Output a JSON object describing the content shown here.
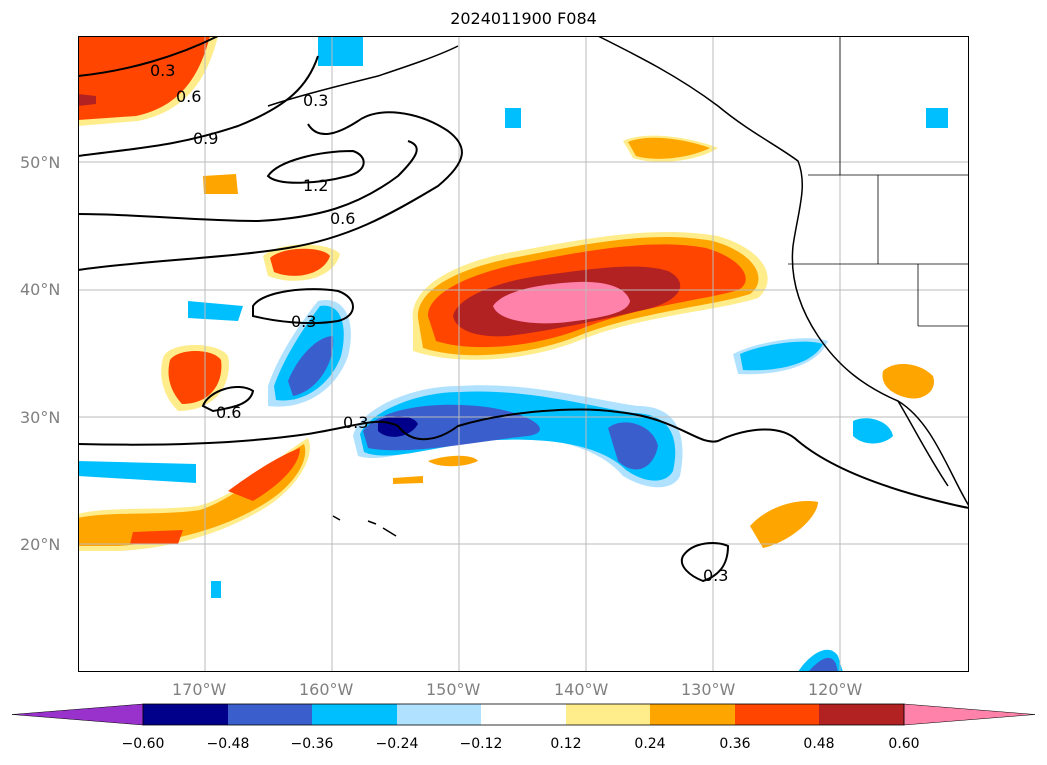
{
  "title": "2024011900 F084",
  "lat_labels": [
    "50°N",
    "40°N",
    "30°N",
    "20°N"
  ],
  "lon_labels": [
    "170°W",
    "160°W",
    "150°W",
    "140°W",
    "130°W",
    "120°W"
  ],
  "contour_labels": [
    "0.3",
    "0.6",
    "0.9",
    "0.3",
    "1.2",
    "0.6",
    "0.3",
    "0.6",
    "0.3",
    "0.3"
  ],
  "colorbar": {
    "ticks": [
      "−0.60",
      "−0.48",
      "−0.36",
      "−0.24",
      "−0.12",
      "0.12",
      "0.24",
      "0.36",
      "0.48",
      "0.60"
    ],
    "colors": [
      "#9932cc",
      "#00008b",
      "#3a5fcd",
      "#00bfff",
      "#b0e2ff",
      "#ffffff",
      "#ffec8b",
      "#ffa500",
      "#ff4500",
      "#b22222",
      "#ff82ab"
    ]
  }
}
